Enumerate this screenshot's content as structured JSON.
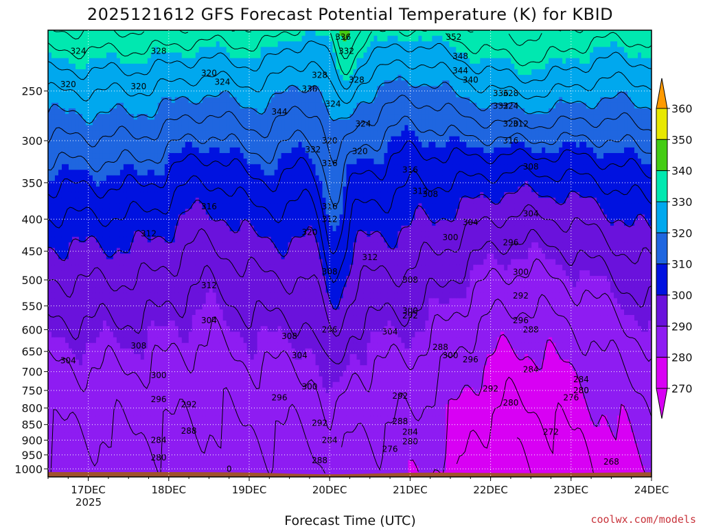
{
  "chart_data": {
    "type": "heatmap",
    "title": "2025121612 GFS Forecast Potential Temperature (K) for KBID",
    "xlabel": "Forecast Time (UTC)",
    "ylabel": "",
    "credit": "coolwx.com/models",
    "x_range": [
      "2025-12-16 12:00",
      "2025-12-24 00:00"
    ],
    "x_ticks": [
      "17DEC",
      "18DEC",
      "19DEC",
      "20DEC",
      "21DEC",
      "22DEC",
      "23DEC",
      "24DEC"
    ],
    "x_tick_year": "2025",
    "y_axis": {
      "reversed": true,
      "ylim": [
        1030,
        200
      ],
      "grid": true
    },
    "y_ticks": [
      250,
      300,
      350,
      400,
      450,
      500,
      550,
      600,
      650,
      700,
      750,
      800,
      850,
      900,
      950,
      1000
    ],
    "colorbar": {
      "levels": [
        270,
        280,
        290,
        300,
        310,
        320,
        330,
        340,
        350,
        360
      ],
      "colors": [
        "#d800f4",
        "#8e1cf2",
        "#6a12dc",
        "#0012e0",
        "#1f66e0",
        "#00a8ee",
        "#00e8b0",
        "#44cc14",
        "#e8e800",
        "#ff9a00"
      ],
      "extend": "both"
    },
    "contour_interval": 4,
    "contour_labels": [
      {
        "x": "16DEC 21Z",
        "p": 216,
        "v": "324"
      },
      {
        "x": "17DEC 21Z",
        "p": 216,
        "v": "328"
      },
      {
        "x": "16DEC 18Z",
        "p": 244,
        "v": "320"
      },
      {
        "x": "17DEC 15Z",
        "p": 246,
        "v": "320"
      },
      {
        "x": "18DEC 12Z",
        "p": 234,
        "v": "320"
      },
      {
        "x": "18DEC 16Z",
        "p": 242,
        "v": "324"
      },
      {
        "x": "19DEC 09Z",
        "p": 270,
        "v": "344"
      },
      {
        "x": "19DEC 18Z",
        "p": 248,
        "v": "336"
      },
      {
        "x": "19DEC 21Z",
        "p": 236,
        "v": "328"
      },
      {
        "x": "20DEC 01Z",
        "p": 262,
        "v": "324"
      },
      {
        "x": "20DEC 04Z",
        "p": 205,
        "v": "336"
      },
      {
        "x": "20DEC 05Z",
        "p": 216,
        "v": "332"
      },
      {
        "x": "21DEC 13Z",
        "p": 205,
        "v": "352"
      },
      {
        "x": "21DEC 15Z",
        "p": 220,
        "v": "348"
      },
      {
        "x": "21DEC 15Z",
        "p": 232,
        "v": "344"
      },
      {
        "x": "21DEC 18Z",
        "p": 240,
        "v": "340"
      },
      {
        "x": "20DEC 08Z",
        "p": 240,
        "v": "328"
      },
      {
        "x": "22DEC 03Z",
        "p": 252,
        "v": "336"
      },
      {
        "x": "22DEC 03Z",
        "p": 264,
        "v": "332"
      },
      {
        "x": "22DEC 06Z",
        "p": 252,
        "v": "328"
      },
      {
        "x": "22DEC 06Z",
        "p": 264,
        "v": "324"
      },
      {
        "x": "20DEC 10Z",
        "p": 282,
        "v": "324"
      },
      {
        "x": "22DEC 06Z",
        "p": 282,
        "v": "320"
      },
      {
        "x": "22DEC 09Z",
        "p": 282,
        "v": "312"
      },
      {
        "x": "19DEC 19Z",
        "p": 310,
        "v": "332"
      },
      {
        "x": "20DEC 00Z",
        "p": 300,
        "v": "320"
      },
      {
        "x": "20DEC 00Z",
        "p": 326,
        "v": "316"
      },
      {
        "x": "20DEC 09Z",
        "p": 312,
        "v": "320"
      },
      {
        "x": "22DEC 06Z",
        "p": 300,
        "v": "316"
      },
      {
        "x": "21DEC 00Z",
        "p": 334,
        "v": "316"
      },
      {
        "x": "22DEC 12Z",
        "p": 330,
        "v": "308"
      },
      {
        "x": "21DEC 03Z",
        "p": 361,
        "v": "312"
      },
      {
        "x": "21DEC 06Z",
        "p": 365,
        "v": "308"
      },
      {
        "x": "18DEC 12Z",
        "p": 382,
        "v": "316"
      },
      {
        "x": "20DEC 00Z",
        "p": 400,
        "v": "312"
      },
      {
        "x": "20DEC 00Z",
        "p": 382,
        "v": "316"
      },
      {
        "x": "21DEC 18Z",
        "p": 405,
        "v": "304"
      },
      {
        "x": "22DEC 12Z",
        "p": 392,
        "v": "304"
      },
      {
        "x": "19DEC 18Z",
        "p": 420,
        "v": "320"
      },
      {
        "x": "17DEC 18Z",
        "p": 422,
        "v": "312"
      },
      {
        "x": "21DEC 12Z",
        "p": 428,
        "v": "300"
      },
      {
        "x": "22DEC 06Z",
        "p": 436,
        "v": "296"
      },
      {
        "x": "20DEC 12Z",
        "p": 460,
        "v": "312"
      },
      {
        "x": "22DEC 09Z",
        "p": 486,
        "v": "300"
      },
      {
        "x": "20DEC 00Z",
        "p": 485,
        "v": "308"
      },
      {
        "x": "21DEC 00Z",
        "p": 500,
        "v": "308"
      },
      {
        "x": "18DEC 12Z",
        "p": 510,
        "v": "312"
      },
      {
        "x": "22DEC 09Z",
        "p": 530,
        "v": "292"
      },
      {
        "x": "21DEC 00Z",
        "p": 570,
        "v": "292"
      },
      {
        "x": "22DEC 09Z",
        "p": 580,
        "v": "296"
      },
      {
        "x": "21DEC 00Z",
        "p": 560,
        "v": "300"
      },
      {
        "x": "18DEC 12Z",
        "p": 580,
        "v": "304"
      },
      {
        "x": "19DEC 12Z",
        "p": 615,
        "v": "308"
      },
      {
        "x": "20DEC 18Z",
        "p": 605,
        "v": "304"
      },
      {
        "x": "22DEC 12Z",
        "p": 600,
        "v": "288"
      },
      {
        "x": "20DEC 00Z",
        "p": 600,
        "v": "296"
      },
      {
        "x": "17DEC 15Z",
        "p": 637,
        "v": "308"
      },
      {
        "x": "21DEC 09Z",
        "p": 640,
        "v": "288"
      },
      {
        "x": "19DEC 15Z",
        "p": 660,
        "v": "304"
      },
      {
        "x": "21DEC 12Z",
        "p": 660,
        "v": "300"
      },
      {
        "x": "21DEC 18Z",
        "p": 670,
        "v": "296"
      },
      {
        "x": "16DEC 18Z",
        "p": 672,
        "v": "304"
      },
      {
        "x": "22DEC 12Z",
        "p": 695,
        "v": "284"
      },
      {
        "x": "17DEC 21Z",
        "p": 710,
        "v": "300"
      },
      {
        "x": "19DEC 18Z",
        "p": 740,
        "v": "300"
      },
      {
        "x": "22DEC 00Z",
        "p": 745,
        "v": "292"
      },
      {
        "x": "19DEC 09Z",
        "p": 770,
        "v": "296"
      },
      {
        "x": "23DEC 03Z",
        "p": 720,
        "v": "284"
      },
      {
        "x": "23DEC 03Z",
        "p": 750,
        "v": "280"
      },
      {
        "x": "20DEC 21Z",
        "p": 765,
        "v": "292"
      },
      {
        "x": "17DEC 21Z",
        "p": 775,
        "v": "296"
      },
      {
        "x": "23DEC 00Z",
        "p": 770,
        "v": "276"
      },
      {
        "x": "18DEC 06Z",
        "p": 790,
        "v": "292"
      },
      {
        "x": "22DEC 06Z",
        "p": 785,
        "v": "280"
      },
      {
        "x": "19DEC 21Z",
        "p": 845,
        "v": "292"
      },
      {
        "x": "20DEC 21Z",
        "p": 840,
        "v": "288"
      },
      {
        "x": "18DEC 06Z",
        "p": 870,
        "v": "288"
      },
      {
        "x": "21DEC 00Z",
        "p": 873,
        "v": "284"
      },
      {
        "x": "22DEC 18Z",
        "p": 873,
        "v": "272"
      },
      {
        "x": "17DEC 21Z",
        "p": 900,
        "v": "284"
      },
      {
        "x": "20DEC 00Z",
        "p": 900,
        "v": "284"
      },
      {
        "x": "21DEC 00Z",
        "p": 905,
        "v": "280"
      },
      {
        "x": "20DEC 18Z",
        "p": 930,
        "v": "276"
      },
      {
        "x": "17DEC 21Z",
        "p": 960,
        "v": "280"
      },
      {
        "x": "19DEC 21Z",
        "p": 970,
        "v": "288"
      },
      {
        "x": "23DEC 12Z",
        "p": 975,
        "v": "268"
      },
      {
        "x": "18DEC 18Z",
        "p": 1000,
        "v": "0"
      }
    ]
  }
}
